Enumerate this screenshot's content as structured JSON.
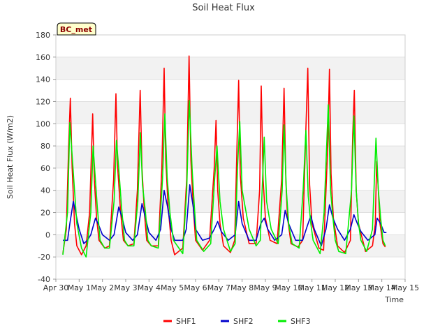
{
  "chart_data": {
    "type": "line",
    "title": "Soil Heat Flux",
    "xlabel": "Time",
    "ylabel": "Soil Heat Flux (W/m2)",
    "site_badge": "BC_met",
    "xlim": [
      0,
      15
    ],
    "ylim": [
      -40,
      180
    ],
    "y_ticks": [
      -40,
      -20,
      0,
      20,
      40,
      60,
      80,
      100,
      120,
      140,
      160,
      180
    ],
    "x_ticks": [
      0,
      1,
      2,
      3,
      4,
      5,
      6,
      7,
      8,
      9,
      10,
      11,
      12,
      13,
      14,
      15
    ],
    "x_tick_labels": [
      "Apr 30",
      "May 1",
      "May 2",
      "May 3",
      "May 4",
      "May 5",
      "May 6",
      "May 7",
      "May 8",
      "May 9",
      "May 10",
      "May 11",
      "May 12",
      "May 13",
      "May 14",
      "May 15"
    ],
    "grid": true,
    "legend_position": "bottom",
    "series": [
      {
        "name": "SHF1",
        "color": "#ff0000",
        "x": [
          0.3,
          0.45,
          0.55,
          0.62,
          0.7,
          0.75,
          0.8,
          0.9,
          1.1,
          1.3,
          1.45,
          1.58,
          1.65,
          1.75,
          1.85,
          2.1,
          2.3,
          2.48,
          2.58,
          2.65,
          2.78,
          2.9,
          3.1,
          3.35,
          3.5,
          3.62,
          3.7,
          3.8,
          3.9,
          4.1,
          4.4,
          4.55,
          4.65,
          4.72,
          4.82,
          4.95,
          5.1,
          5.45,
          5.62,
          5.72,
          5.8,
          5.9,
          6.0,
          6.3,
          6.6,
          6.8,
          6.88,
          6.95,
          7.05,
          7.2,
          7.5,
          7.68,
          7.78,
          7.85,
          7.92,
          8.05,
          8.3,
          8.6,
          8.75,
          8.82,
          8.9,
          9.0,
          9.2,
          9.5,
          9.7,
          9.8,
          9.88,
          9.95,
          10.1,
          10.4,
          10.6,
          10.73,
          10.82,
          10.9,
          11.0,
          11.3,
          11.5,
          11.68,
          11.75,
          11.82,
          11.92,
          12.1,
          12.4,
          12.65,
          12.75,
          12.82,
          12.9,
          13.0,
          13.3,
          13.6,
          13.72,
          13.78,
          13.85,
          13.92,
          14.05,
          14.15
        ],
        "y": [
          -17,
          5,
          80,
          123,
          60,
          35,
          10,
          -10,
          -18,
          -10,
          20,
          109,
          50,
          15,
          -5,
          -12,
          -10,
          50,
          127,
          62,
          20,
          -5,
          -10,
          -8,
          40,
          130,
          60,
          20,
          -5,
          -10,
          -10,
          60,
          150,
          68,
          25,
          -5,
          -18,
          -12,
          50,
          161,
          67,
          25,
          -5,
          -14,
          -5,
          60,
          103,
          40,
          10,
          -10,
          -16,
          -5,
          80,
          139,
          54,
          15,
          -8,
          -8,
          40,
          134,
          50,
          15,
          -5,
          -8,
          50,
          132,
          48,
          15,
          -8,
          -11,
          -5,
          90,
          150,
          45,
          10,
          -12,
          -14,
          80,
          149,
          55,
          15,
          -10,
          -16,
          -5,
          90,
          130,
          40,
          10,
          -15,
          -10,
          10,
          66,
          40,
          10,
          -8,
          -11
        ]
      },
      {
        "name": "SHF2",
        "color": "#0000cc",
        "x": [
          0.3,
          0.5,
          0.6,
          0.75,
          0.85,
          1.0,
          1.2,
          1.35,
          1.5,
          1.7,
          1.85,
          2.0,
          2.3,
          2.5,
          2.7,
          2.85,
          3.0,
          3.3,
          3.5,
          3.7,
          3.85,
          4.0,
          4.3,
          4.5,
          4.65,
          4.8,
          4.95,
          5.1,
          5.45,
          5.6,
          5.75,
          5.9,
          6.0,
          6.3,
          6.6,
          6.8,
          6.95,
          7.1,
          7.4,
          7.7,
          7.85,
          8.0,
          8.3,
          8.6,
          8.8,
          8.95,
          9.1,
          9.4,
          9.7,
          9.85,
          10.0,
          10.3,
          10.6,
          10.8,
          10.95,
          11.1,
          11.4,
          11.6,
          11.75,
          11.9,
          12.1,
          12.4,
          12.65,
          12.8,
          12.95,
          13.1,
          13.4,
          13.7,
          13.8,
          13.95,
          14.1,
          14.2
        ],
        "y": [
          -5,
          -5,
          10,
          30,
          20,
          5,
          -8,
          -5,
          0,
          15,
          8,
          0,
          -5,
          0,
          25,
          15,
          2,
          -5,
          0,
          28,
          15,
          2,
          -5,
          5,
          40,
          25,
          5,
          -5,
          -5,
          5,
          45,
          25,
          5,
          -5,
          -3,
          5,
          12,
          3,
          -5,
          0,
          30,
          10,
          -5,
          -5,
          10,
          15,
          5,
          -5,
          0,
          22,
          10,
          -5,
          -5,
          8,
          17,
          5,
          -10,
          5,
          27,
          15,
          5,
          -5,
          5,
          18,
          10,
          3,
          -5,
          0,
          15,
          10,
          2,
          2
        ]
      },
      {
        "name": "SHF3",
        "color": "#00ee00",
        "x": [
          0.3,
          0.5,
          0.6,
          0.72,
          0.8,
          0.9,
          1.1,
          1.3,
          1.5,
          1.6,
          1.68,
          1.78,
          1.9,
          2.1,
          2.3,
          2.5,
          2.6,
          2.7,
          2.82,
          2.95,
          3.1,
          3.35,
          3.52,
          3.63,
          3.72,
          3.85,
          3.95,
          4.1,
          4.4,
          4.58,
          4.68,
          4.78,
          4.9,
          5.05,
          5.45,
          5.62,
          5.73,
          5.85,
          5.95,
          6.05,
          6.35,
          6.65,
          6.82,
          6.92,
          7.05,
          7.2,
          7.5,
          7.7,
          7.8,
          7.9,
          8.0,
          8.3,
          8.6,
          8.78,
          8.86,
          8.95,
          9.05,
          9.25,
          9.55,
          9.72,
          9.8,
          9.9,
          10.0,
          10.15,
          10.45,
          10.62,
          10.74,
          10.84,
          10.95,
          11.05,
          11.35,
          11.52,
          11.7,
          11.8,
          11.9,
          12.0,
          12.15,
          12.45,
          12.7,
          12.8,
          12.9,
          13.0,
          13.1,
          13.35,
          13.6,
          13.75,
          13.85,
          13.95,
          14.05,
          14.15
        ],
        "y": [
          -18,
          20,
          101,
          65,
          40,
          10,
          -12,
          -20,
          20,
          80,
          55,
          25,
          -5,
          -12,
          -12,
          30,
          85,
          60,
          25,
          -5,
          -10,
          -10,
          30,
          92,
          45,
          20,
          -5,
          -10,
          -12,
          50,
          109,
          52,
          20,
          -5,
          -17,
          40,
          121,
          60,
          25,
          -5,
          -15,
          -8,
          50,
          80,
          30,
          5,
          -15,
          -8,
          60,
          102,
          40,
          5,
          -10,
          -5,
          40,
          88,
          30,
          5,
          -8,
          40,
          99,
          40,
          10,
          -8,
          -12,
          40,
          94,
          35,
          10,
          -5,
          -17,
          20,
          117,
          40,
          15,
          -5,
          -15,
          -17,
          40,
          107,
          40,
          10,
          -5,
          -15,
          5,
          87,
          40,
          15,
          -5,
          -10
        ]
      }
    ]
  }
}
